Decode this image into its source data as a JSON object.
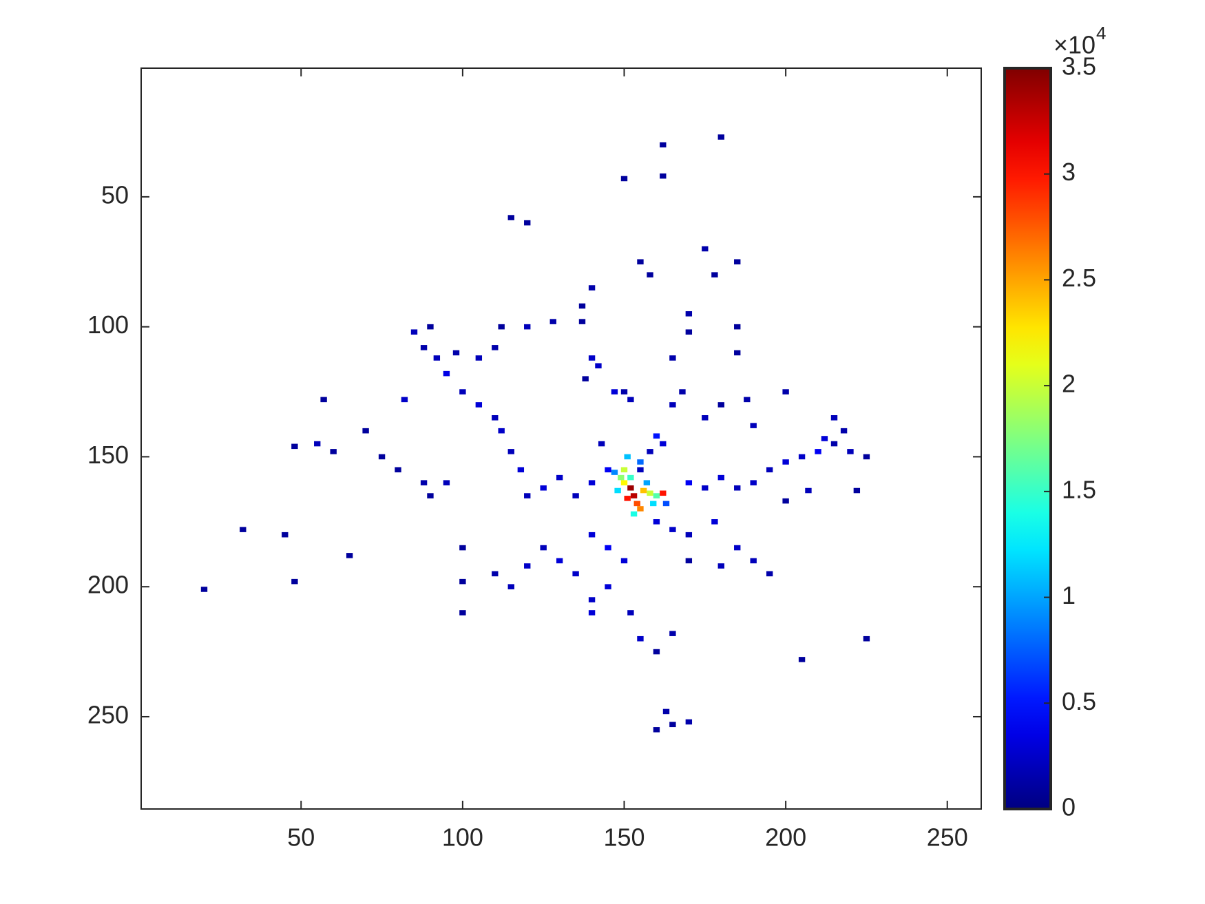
{
  "chart_data": {
    "type": "heatmap",
    "xlim": [
      0.5,
      260.5
    ],
    "ylim": [
      0.5,
      285.5
    ],
    "y_reversed": true,
    "xticks": [
      50,
      100,
      150,
      200,
      250
    ],
    "yticks": [
      50,
      100,
      150,
      200,
      250
    ],
    "colormap": "jet",
    "clim": [
      0,
      35000
    ],
    "colorbar_ticks": [
      {
        "value": 0,
        "label": "0"
      },
      {
        "value": 5000,
        "label": "0.5"
      },
      {
        "value": 10000,
        "label": "1"
      },
      {
        "value": 15000,
        "label": "1.5"
      },
      {
        "value": 20000,
        "label": "2"
      },
      {
        "value": 25000,
        "label": "2.5"
      },
      {
        "value": 30000,
        "label": "3"
      },
      {
        "value": 35000,
        "label": "3.5"
      }
    ],
    "colorbar_multiplier": "×10",
    "colorbar_exponent": "4",
    "x": [
      152,
      153,
      151,
      154,
      150,
      149,
      156,
      158,
      155,
      152,
      148,
      157,
      160,
      153,
      150,
      147,
      155,
      151,
      159,
      163,
      162,
      160,
      162,
      158,
      145,
      140,
      135,
      130,
      125,
      120,
      118,
      115,
      112,
      110,
      105,
      100,
      95,
      92,
      88,
      85,
      90,
      98,
      105,
      110,
      112,
      120,
      128,
      137,
      140,
      138,
      147,
      143,
      155,
      170,
      175,
      180,
      185,
      190,
      195,
      200,
      205,
      210,
      212,
      215,
      220,
      225,
      222,
      207,
      200,
      140,
      145,
      150,
      135,
      130,
      125,
      120,
      115,
      110,
      100,
      145,
      140,
      140,
      152,
      155,
      160,
      165,
      170,
      178,
      185,
      190,
      195,
      180,
      165,
      160,
      170,
      163,
      165,
      160,
      170,
      225,
      205,
      100,
      165,
      168,
      175,
      180,
      188,
      190,
      185,
      165,
      152,
      150,
      142,
      137,
      140,
      155,
      158,
      162,
      180,
      162,
      150,
      175,
      178,
      185,
      120,
      115,
      170,
      170,
      185,
      215,
      200,
      218,
      20,
      32,
      48,
      55,
      57,
      60,
      70,
      80,
      45,
      65,
      48,
      88,
      95,
      82,
      90,
      75,
      100
    ],
    "y": [
      162,
      165,
      166,
      168,
      160,
      158,
      163,
      164,
      170,
      158,
      163,
      160,
      165,
      172,
      155,
      156,
      152,
      150,
      168,
      168,
      164,
      142,
      145,
      148,
      155,
      160,
      165,
      158,
      162,
      165,
      155,
      148,
      140,
      135,
      130,
      125,
      118,
      112,
      108,
      102,
      100,
      110,
      112,
      108,
      100,
      100,
      98,
      98,
      112,
      120,
      125,
      145,
      155,
      160,
      162,
      158,
      162,
      160,
      155,
      152,
      150,
      148,
      143,
      145,
      148,
      150,
      163,
      163,
      167,
      180,
      185,
      190,
      195,
      190,
      185,
      192,
      200,
      195,
      198,
      200,
      205,
      210,
      210,
      220,
      225,
      218,
      180,
      175,
      185,
      190,
      195,
      192,
      178,
      175,
      190,
      248,
      253,
      255,
      252,
      220,
      228,
      210,
      130,
      125,
      135,
      130,
      128,
      138,
      110,
      112,
      128,
      125,
      115,
      92,
      85,
      75,
      80,
      30,
      27,
      42,
      43,
      70,
      80,
      75,
      60,
      58,
      95,
      102,
      100,
      135,
      125,
      140,
      201,
      178,
      146,
      145,
      128,
      148,
      140,
      155,
      180,
      188,
      198,
      160,
      160,
      128,
      165,
      150,
      185
    ],
    "values": [
      34000,
      33000,
      30000,
      28000,
      22000,
      18000,
      24000,
      20000,
      26000,
      15000,
      12000,
      10000,
      16000,
      14000,
      20000,
      9000,
      8000,
      11000,
      12000,
      7000,
      30000,
      5000,
      3000,
      2000,
      4000,
      3000,
      2000,
      2500,
      3000,
      2000,
      3000,
      2000,
      2500,
      2000,
      3000,
      2000,
      3500,
      2000,
      1500,
      2000,
      1000,
      1500,
      2000,
      1500,
      1000,
      2000,
      1500,
      1000,
      2500,
      1000,
      3000,
      2000,
      2000,
      4000,
      2500,
      3000,
      2000,
      2500,
      2000,
      3000,
      2500,
      4000,
      3000,
      1500,
      2000,
      1000,
      1000,
      2000,
      1000,
      3000,
      4000,
      3000,
      2500,
      3000,
      2000,
      2500,
      2000,
      1500,
      1000,
      3000,
      2500,
      3000,
      2000,
      2500,
      1000,
      1500,
      2000,
      3000,
      2500,
      2000,
      1500,
      2000,
      2500,
      3000,
      1000,
      1500,
      1000,
      1000,
      1500,
      1000,
      1000,
      1000,
      2000,
      1500,
      2000,
      1000,
      1500,
      2000,
      1000,
      1500,
      2000,
      1500,
      2500,
      1000,
      1500,
      1000,
      1000,
      1000,
      1000,
      1000,
      1000,
      1500,
      1000,
      1000,
      1000,
      1000,
      1500,
      1000,
      1000,
      2000,
      1500,
      1500,
      1000,
      1000,
      1000,
      2000,
      1000,
      1000,
      1000,
      1000,
      1000,
      1000,
      1000,
      1500,
      2000,
      2500,
      1000,
      1000,
      1000
    ]
  }
}
